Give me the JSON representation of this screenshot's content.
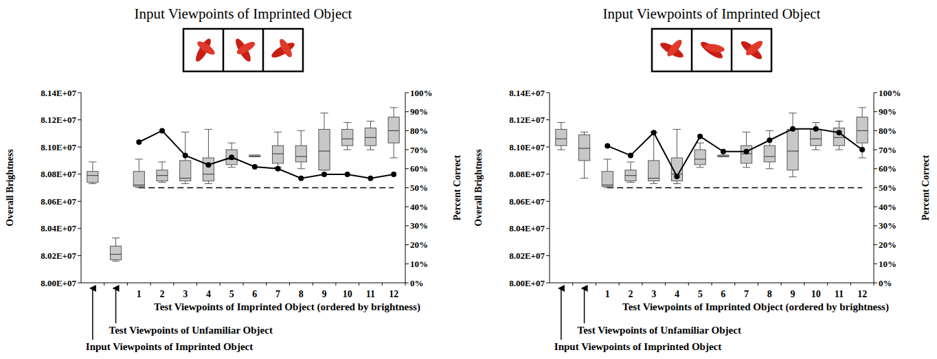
{
  "chart_data": [
    {
      "type": "box",
      "title": "Input Viewpoints of Imprinted Object",
      "ylabel": "Overall Brightness",
      "y2label": "Percent Correct",
      "xlabel": "Test Viewpoints of Imprinted Object (ordered by brightness)",
      "annotations": [
        "Input Viewpoints of Imprinted Object",
        "Test Viewpoints of Unfamiliar Object"
      ],
      "categories": [
        null,
        null,
        "1",
        "2",
        "3",
        "4",
        "5",
        "6",
        "7",
        "8",
        "9",
        "10",
        "11",
        "12"
      ],
      "ylim": [
        80000000,
        81400000
      ],
      "yticks": [
        {
          "value": 80000000,
          "label": "8.00E+07"
        },
        {
          "value": 80200000,
          "label": "8.02E+07"
        },
        {
          "value": 80400000,
          "label": "8.04E+07"
        },
        {
          "value": 80600000,
          "label": "8.06E+07"
        },
        {
          "value": 80800000,
          "label": "8.08E+07"
        },
        {
          "value": 81000000,
          "label": "8.10E+07"
        },
        {
          "value": 81200000,
          "label": "8.12E+07"
        },
        {
          "value": 81400000,
          "label": "8.14E+07"
        }
      ],
      "y2lim": [
        0,
        100
      ],
      "y2ticks": [
        {
          "value": 0,
          "label": "0%"
        },
        {
          "value": 10,
          "label": "10%"
        },
        {
          "value": 20,
          "label": "20%"
        },
        {
          "value": 30,
          "label": "30%"
        },
        {
          "value": 40,
          "label": "40%"
        },
        {
          "value": 50,
          "label": "50%"
        },
        {
          "value": 60,
          "label": "60%"
        },
        {
          "value": 70,
          "label": "70%"
        },
        {
          "value": 80,
          "label": "80%"
        },
        {
          "value": 90,
          "label": "90%"
        },
        {
          "value": 100,
          "label": "100%"
        }
      ],
      "series": [
        {
          "type": "box",
          "color": "#c8c8c8",
          "min": [
            80730000,
            80160000,
            80700000,
            80740000,
            80730000,
            80730000,
            80850000,
            80930000,
            80850000,
            80840000,
            80830000,
            80980000,
            80980000,
            80920000
          ],
          "q1": [
            80740000,
            80170000,
            80710000,
            80750000,
            80750000,
            80750000,
            80870000,
            80930000,
            80880000,
            80890000,
            80830000,
            81010000,
            81010000,
            81030000
          ],
          "median": [
            80790000,
            80210000,
            80720000,
            80790000,
            80770000,
            80800000,
            80910000,
            80930000,
            80950000,
            80930000,
            80970000,
            81060000,
            81070000,
            81120000
          ],
          "q3": [
            80820000,
            80270000,
            80820000,
            80830000,
            80900000,
            80920000,
            80980000,
            80940000,
            81010000,
            81010000,
            81130000,
            81130000,
            81140000,
            81220000
          ],
          "max": [
            80890000,
            80330000,
            80910000,
            80890000,
            81110000,
            81130000,
            81030000,
            80940000,
            81110000,
            81120000,
            81250000,
            81180000,
            81190000,
            81290000
          ]
        },
        {
          "type": "line",
          "axis": "y2",
          "color": "#000000",
          "marker": "circle",
          "line_style": "solid",
          "values": [
            null,
            null,
            74,
            80,
            67,
            62,
            66,
            61,
            60,
            55,
            57,
            57,
            55,
            57
          ]
        },
        {
          "type": "line",
          "axis": "y2",
          "color": "#000000",
          "line_style": "dashed",
          "values": [
            null,
            null,
            50,
            50,
            50,
            50,
            50,
            50,
            50,
            50,
            50,
            50,
            50,
            50
          ]
        }
      ]
    },
    {
      "type": "box",
      "title": "Input Viewpoints of Imprinted Object",
      "ylabel": "Overall Brightness",
      "y2label": "Percent Correct",
      "xlabel": "Test Viewpoints of Imprinted Object (ordered by brightness)",
      "annotations": [
        "Input Viewpoints of Imprinted Object",
        "Test Viewpoints of Unfamiliar Object"
      ],
      "categories": [
        null,
        null,
        "1",
        "2",
        "3",
        "4",
        "5",
        "6",
        "7",
        "8",
        "9",
        "10",
        "11",
        "12"
      ],
      "ylim": [
        80000000,
        81400000
      ],
      "yticks": [
        {
          "value": 80000000,
          "label": "8.00E+07"
        },
        {
          "value": 80200000,
          "label": "8.02E+07"
        },
        {
          "value": 80400000,
          "label": "8.04E+07"
        },
        {
          "value": 80600000,
          "label": "8.06E+07"
        },
        {
          "value": 80800000,
          "label": "8.08E+07"
        },
        {
          "value": 81000000,
          "label": "8.10E+07"
        },
        {
          "value": 81200000,
          "label": "8.12E+07"
        },
        {
          "value": 81400000,
          "label": "8.14E+07"
        }
      ],
      "y2lim": [
        0,
        100
      ],
      "y2ticks": [
        {
          "value": 0,
          "label": "0%"
        },
        {
          "value": 10,
          "label": "10%"
        },
        {
          "value": 20,
          "label": "20%"
        },
        {
          "value": 30,
          "label": "30%"
        },
        {
          "value": 40,
          "label": "40%"
        },
        {
          "value": 50,
          "label": "50%"
        },
        {
          "value": 60,
          "label": "60%"
        },
        {
          "value": 70,
          "label": "70%"
        },
        {
          "value": 80,
          "label": "80%"
        },
        {
          "value": 90,
          "label": "90%"
        },
        {
          "value": 100,
          "label": "100%"
        }
      ],
      "series": [
        {
          "type": "box",
          "color": "#c8c8c8",
          "min": [
            80980000,
            80770000,
            80700000,
            80740000,
            80730000,
            80730000,
            80850000,
            80930000,
            80850000,
            80840000,
            80780000,
            80980000,
            80980000,
            80920000
          ],
          "q1": [
            81010000,
            80900000,
            80710000,
            80750000,
            80750000,
            80750000,
            80870000,
            80930000,
            80880000,
            80890000,
            80830000,
            81010000,
            81010000,
            81030000
          ],
          "median": [
            81060000,
            80990000,
            80720000,
            80790000,
            80770000,
            80800000,
            80910000,
            80930000,
            80950000,
            80930000,
            80970000,
            81060000,
            81070000,
            81120000
          ],
          "q3": [
            81130000,
            81090000,
            80820000,
            80830000,
            80900000,
            80920000,
            80980000,
            80940000,
            81010000,
            81010000,
            81130000,
            81130000,
            81140000,
            81220000
          ],
          "max": [
            81180000,
            81110000,
            80910000,
            80890000,
            81110000,
            81130000,
            81030000,
            80940000,
            81110000,
            81120000,
            81250000,
            81180000,
            81190000,
            81290000
          ]
        },
        {
          "type": "line",
          "axis": "y2",
          "color": "#000000",
          "marker": "circle",
          "line_style": "solid",
          "values": [
            null,
            null,
            72,
            67,
            79,
            56,
            77,
            69,
            69,
            75,
            81,
            81,
            79,
            70
          ]
        },
        {
          "type": "line",
          "axis": "y2",
          "color": "#000000",
          "line_style": "dashed",
          "values": [
            null,
            null,
            50,
            50,
            50,
            50,
            50,
            50,
            50,
            50,
            50,
            50,
            50,
            50
          ]
        }
      ]
    }
  ]
}
